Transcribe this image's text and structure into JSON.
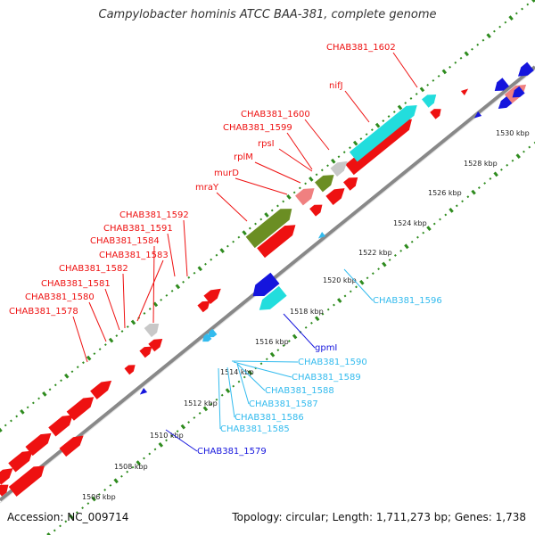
{
  "title": "Campylobacter hominis ATCC BAA-381, complete genome",
  "accession": "Accession: NC_009714",
  "topology": "Topology: circular; Length: 1,711,273 bp; Genes: 1,738",
  "colors": {
    "backbone": "#808080",
    "dots": "#2e8b1e",
    "red": "#ee1111",
    "pink": "#f08080",
    "green": "#6b8e23",
    "gray": "#c8c8c8",
    "cyan": "#22dddd",
    "dblue": "#1515dd",
    "lblue": "#33bbee"
  },
  "ticks": [
    "1506 kbp",
    "1508 kbp",
    "1510 kbp",
    "1512 kbp",
    "1514 kbp",
    "1516 kbp",
    "1518 kbp",
    "1520 kbp",
    "1522 kbp",
    "1524 kbp",
    "1526 kbp",
    "1528 kbp",
    "1530 kbp"
  ],
  "gene_labels_left": [
    "CHAB381_1602",
    "nifJ",
    "CHAB381_1600",
    "CHAB381_1599",
    "rpsI",
    "rplM",
    "murD",
    "mraY",
    "CHAB381_1592",
    "CHAB381_1591",
    "CHAB381_1584",
    "CHAB381_1583",
    "CHAB381_1582",
    "CHAB381_1581",
    "CHAB381_1580",
    "CHAB381_1578"
  ],
  "gene_labels_right": [
    "CHAB381_1596",
    "gpmI",
    "CHAB381_1590",
    "CHAB381_1589",
    "CHAB381_1588",
    "CHAB381_1587",
    "CHAB381_1586",
    "CHAB381_1585",
    "CHAB381_1579"
  ]
}
